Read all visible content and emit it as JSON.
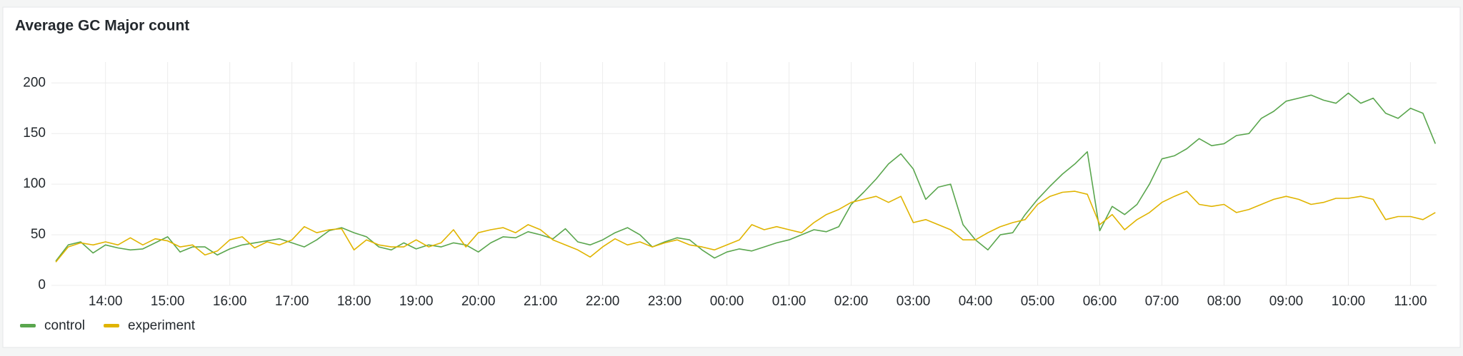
{
  "chart_data": {
    "type": "line",
    "title": "Average GC Major count",
    "x": [
      13.2,
      13.4,
      13.6,
      13.8,
      14,
      14.2,
      14.4,
      14.6,
      14.8,
      15,
      15.2,
      15.4,
      15.6,
      15.8,
      16,
      16.2,
      16.4,
      16.6,
      16.8,
      17,
      17.2,
      17.4,
      17.6,
      17.8,
      18,
      18.2,
      18.4,
      18.6,
      18.8,
      19,
      19.2,
      19.4,
      19.6,
      19.8,
      20,
      20.2,
      20.4,
      20.6,
      20.8,
      21,
      21.2,
      21.4,
      21.6,
      21.8,
      22,
      22.2,
      22.4,
      22.6,
      22.8,
      23,
      23.2,
      23.4,
      23.6,
      23.8,
      24,
      24.2,
      24.4,
      24.6,
      24.8,
      25,
      25.2,
      25.4,
      25.6,
      25.8,
      26,
      26.2,
      26.4,
      26.6,
      26.8,
      27,
      27.2,
      27.4,
      27.6,
      27.8,
      28,
      28.2,
      28.4,
      28.6,
      28.8,
      29,
      29.2,
      29.4,
      29.6,
      29.8,
      30,
      30.2,
      30.4,
      30.6,
      30.8,
      31,
      31.2,
      31.4,
      31.6,
      31.8,
      32,
      32.2,
      32.4,
      32.6,
      32.8,
      33,
      33.2,
      33.4,
      33.6,
      33.8,
      34,
      34.2,
      34.4,
      34.6,
      34.8,
      35,
      35.2,
      35.4
    ],
    "series": [
      {
        "name": "control",
        "color": "#5aa64e",
        "values": [
          24,
          40,
          43,
          32,
          40,
          37,
          35,
          36,
          42,
          48,
          33,
          38,
          38,
          30,
          36,
          40,
          42,
          44,
          46,
          42,
          38,
          45,
          54,
          57,
          52,
          48,
          38,
          35,
          42,
          36,
          40,
          38,
          42,
          40,
          33,
          42,
          48,
          47,
          53,
          50,
          46,
          56,
          43,
          40,
          45,
          52,
          57,
          50,
          38,
          43,
          47,
          45,
          35,
          27,
          33,
          36,
          34,
          38,
          42,
          45,
          50,
          55,
          53,
          58,
          80,
          92,
          105,
          120,
          130,
          115,
          85,
          97,
          100,
          60,
          45,
          35,
          50,
          52,
          70,
          85,
          98,
          110,
          120,
          132,
          54,
          78,
          70,
          80,
          100,
          125,
          128,
          135,
          145,
          138,
          140,
          148,
          150,
          165,
          172,
          182,
          185,
          188,
          183,
          180,
          190,
          180,
          185,
          170,
          165,
          175,
          170,
          140
        ]
      },
      {
        "name": "experiment",
        "color": "#e0b400",
        "values": [
          23,
          38,
          42,
          40,
          43,
          40,
          47,
          40,
          46,
          44,
          38,
          40,
          30,
          34,
          45,
          48,
          37,
          43,
          40,
          45,
          58,
          52,
          55,
          56,
          35,
          45,
          40,
          38,
          38,
          45,
          38,
          42,
          55,
          38,
          52,
          55,
          57,
          52,
          60,
          55,
          45,
          40,
          35,
          28,
          38,
          46,
          40,
          43,
          38,
          42,
          45,
          40,
          38,
          35,
          40,
          45,
          60,
          55,
          58,
          55,
          52,
          62,
          70,
          75,
          82,
          85,
          88,
          82,
          88,
          62,
          65,
          60,
          55,
          45,
          45,
          52,
          58,
          62,
          65,
          80,
          88,
          92,
          93,
          90,
          60,
          70,
          55,
          65,
          72,
          82,
          88,
          93,
          80,
          78,
          80,
          72,
          75,
          80,
          85,
          88,
          85,
          80,
          82,
          86,
          86,
          88,
          85,
          65,
          68,
          68,
          65,
          72
        ]
      }
    ],
    "xlim": [
      13.13,
      35.42
    ],
    "xticks": [
      {
        "value": 14,
        "label": "14:00"
      },
      {
        "value": 15,
        "label": "15:00"
      },
      {
        "value": 16,
        "label": "16:00"
      },
      {
        "value": 17,
        "label": "17:00"
      },
      {
        "value": 18,
        "label": "18:00"
      },
      {
        "value": 19,
        "label": "19:00"
      },
      {
        "value": 20,
        "label": "20:00"
      },
      {
        "value": 21,
        "label": "21:00"
      },
      {
        "value": 22,
        "label": "22:00"
      },
      {
        "value": 23,
        "label": "23:00"
      },
      {
        "value": 24,
        "label": "00:00"
      },
      {
        "value": 25,
        "label": "01:00"
      },
      {
        "value": 26,
        "label": "02:00"
      },
      {
        "value": 27,
        "label": "03:00"
      },
      {
        "value": 28,
        "label": "04:00"
      },
      {
        "value": 29,
        "label": "05:00"
      },
      {
        "value": 30,
        "label": "06:00"
      },
      {
        "value": 31,
        "label": "07:00"
      },
      {
        "value": 32,
        "label": "08:00"
      },
      {
        "value": 33,
        "label": "09:00"
      },
      {
        "value": 34,
        "label": "10:00"
      },
      {
        "value": 35,
        "label": "11:00"
      }
    ],
    "ylim": [
      0,
      215
    ],
    "yticks": [
      0,
      50,
      100,
      150,
      200
    ],
    "grid": true,
    "legend": "bottom-left"
  }
}
